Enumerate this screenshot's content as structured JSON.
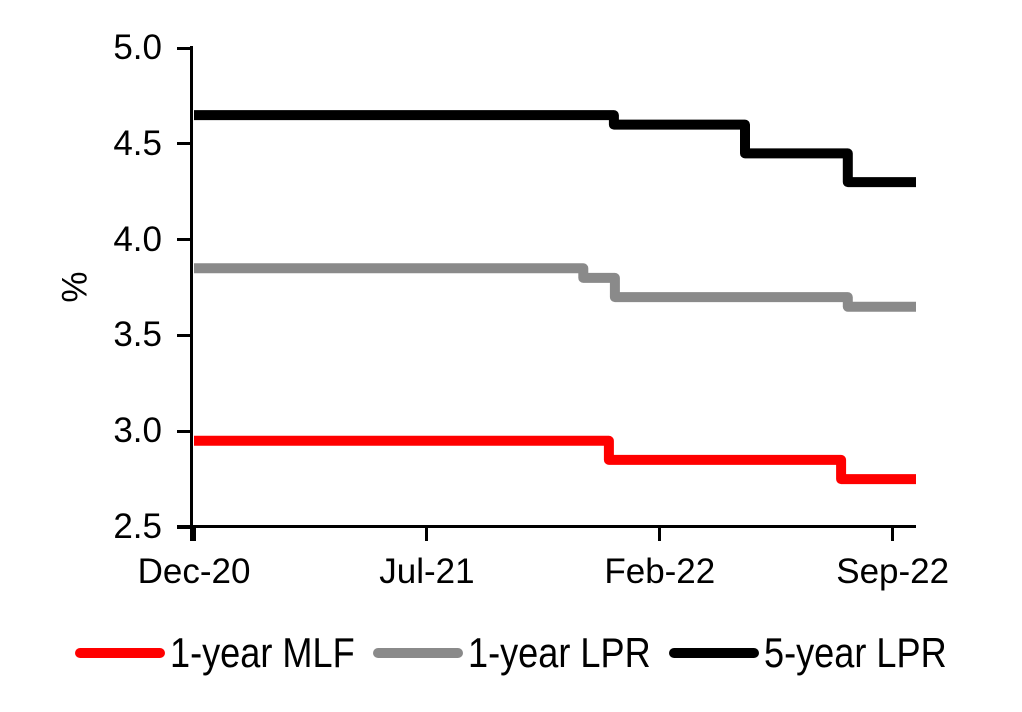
{
  "chart_data": {
    "type": "line",
    "subtype": "step",
    "title": "",
    "ylabel": "%",
    "xlabel": "",
    "ylim": [
      2.5,
      5.0
    ],
    "y_ticks": [
      "2.5",
      "3.0",
      "3.5",
      "4.0",
      "4.5",
      "5.0"
    ],
    "x_unit": "months since Dec-2020",
    "xlim": [
      0,
      21.7
    ],
    "x_ticks": [
      {
        "label": "Dec-20",
        "t": 0
      },
      {
        "label": "Jul-21",
        "t": 7
      },
      {
        "label": "Feb-22",
        "t": 14
      },
      {
        "label": "Sep-22",
        "t": 21
      }
    ],
    "grid": false,
    "legend_position": "bottom",
    "background": "#FFFFFF",
    "axis_color": "#000000",
    "line_width": 10,
    "series": [
      {
        "name": "1-year MLF",
        "color": "#FF0000",
        "levels": [
          {
            "from_t": 0,
            "value": 2.95
          },
          {
            "from_t": 12.47,
            "value": 2.85
          },
          {
            "from_t": 19.45,
            "value": 2.75
          }
        ],
        "points": [
          [
            0,
            2.95
          ],
          [
            12.47,
            2.95
          ],
          [
            12.47,
            2.85
          ],
          [
            19.45,
            2.85
          ],
          [
            19.45,
            2.75
          ],
          [
            21.7,
            2.75
          ]
        ]
      },
      {
        "name": "1-year LPR",
        "color": "#8A8A8A",
        "levels": [
          {
            "from_t": 0,
            "value": 3.85
          },
          {
            "from_t": 11.7,
            "value": 3.8
          },
          {
            "from_t": 12.65,
            "value": 3.7
          },
          {
            "from_t": 19.65,
            "value": 3.65
          }
        ],
        "points": [
          [
            0,
            3.85
          ],
          [
            11.7,
            3.85
          ],
          [
            11.7,
            3.8
          ],
          [
            12.65,
            3.8
          ],
          [
            12.65,
            3.7
          ],
          [
            19.65,
            3.7
          ],
          [
            19.65,
            3.65
          ],
          [
            21.7,
            3.65
          ]
        ]
      },
      {
        "name": "5-year LPR",
        "color": "#000000",
        "levels": [
          {
            "from_t": 0,
            "value": 4.65
          },
          {
            "from_t": 12.62,
            "value": 4.6
          },
          {
            "from_t": 16.56,
            "value": 4.45
          },
          {
            "from_t": 19.65,
            "value": 4.3
          }
        ],
        "points": [
          [
            0,
            4.65
          ],
          [
            12.62,
            4.65
          ],
          [
            12.62,
            4.6
          ],
          [
            16.56,
            4.6
          ],
          [
            16.56,
            4.45
          ],
          [
            19.65,
            4.45
          ],
          [
            19.65,
            4.3
          ],
          [
            21.7,
            4.3
          ]
        ]
      }
    ]
  }
}
